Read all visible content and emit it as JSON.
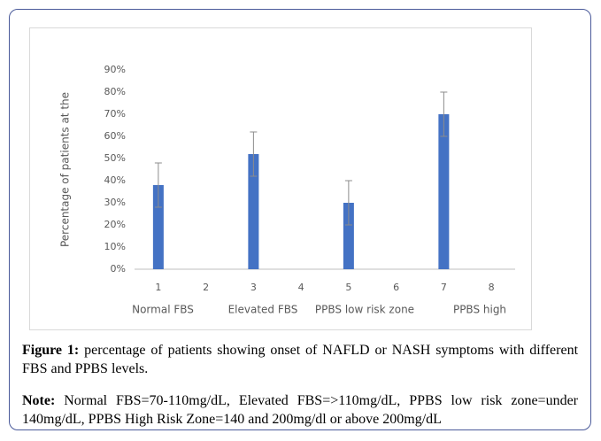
{
  "chart_data": {
    "type": "bar",
    "y_label": "Percentage of patients at the",
    "categories": [
      "1",
      "2",
      "3",
      "4",
      "5",
      "6",
      "7",
      "8"
    ],
    "values": [
      38,
      null,
      52,
      null,
      30,
      null,
      70,
      null
    ],
    "errors": [
      10,
      null,
      10,
      null,
      10,
      null,
      10,
      null
    ],
    "group_labels": [
      "Normal FBS",
      "Elevated FBS",
      "PPBS low risk zone",
      "PPBS high"
    ],
    "color": "#4472c4",
    "ylim": [
      0,
      90
    ],
    "yticks": [
      {
        "value": 0,
        "label": "0%"
      },
      {
        "value": 10,
        "label": "10%"
      },
      {
        "value": 20,
        "label": "20%"
      },
      {
        "value": 30,
        "label": "30%"
      },
      {
        "value": 40,
        "label": "40%"
      },
      {
        "value": 50,
        "label": "50%"
      },
      {
        "value": 60,
        "label": "60%"
      },
      {
        "value": 70,
        "label": "70%"
      },
      {
        "value": 80,
        "label": "80%"
      },
      {
        "value": 90,
        "label": "90%"
      }
    ],
    "grid": false
  },
  "caption": {
    "label": "Figure 1:",
    "text": "percentage of patients showing onset of NAFLD or NASH symptoms with different FBS and PPBS levels."
  },
  "note": {
    "label": "Note:",
    "text": "Normal FBS=70-110mg/dL, Elevated FBS=>110mg/dL, PPBS low risk zone=under 140mg/dL, PPBS High Risk Zone=140 and 200mg/dl or above 200mg/dL"
  }
}
